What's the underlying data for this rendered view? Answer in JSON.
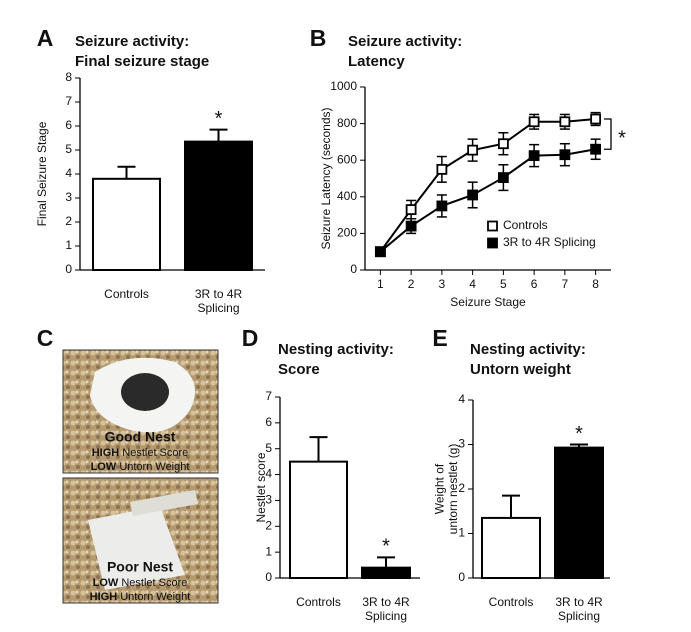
{
  "chart_data": [
    {
      "type": "bar",
      "panel_label": "A",
      "title": "Seizure activity:",
      "subtitle": "Final seizure stage",
      "ylabel": "Final Seizure Stage",
      "categories": [
        "Controls",
        "3R to 4R\nSplicing"
      ],
      "values": [
        3.8,
        5.35
      ],
      "errors": [
        0.5,
        0.5
      ],
      "colors": [
        "#ffffff",
        "#000000"
      ],
      "ylim": [
        0,
        8
      ],
      "yticks": [
        0,
        1,
        2,
        3,
        4,
        5,
        6,
        7,
        8
      ],
      "significance_label": "*"
    },
    {
      "type": "line",
      "panel_label": "B",
      "title": "Seizure activity:",
      "subtitle": "Latency",
      "xlabel": "Seizure Stage",
      "ylabel": "Seizure Latency (seconds)",
      "x": [
        1,
        2,
        3,
        4,
        5,
        6,
        7,
        8
      ],
      "xlim": [
        0.5,
        8.5
      ],
      "xticks": [
        1,
        2,
        3,
        4,
        5,
        6,
        7,
        8
      ],
      "ylim": [
        0,
        1000
      ],
      "yticks": [
        0,
        200,
        400,
        600,
        800,
        1000
      ],
      "series": [
        {
          "name": "Controls",
          "color": "#ffffff",
          "values": [
            100,
            330,
            550,
            655,
            690,
            810,
            810,
            825
          ],
          "errors": [
            20,
            50,
            70,
            60,
            60,
            40,
            40,
            35
          ]
        },
        {
          "name": "3R to 4R Splicing",
          "color": "#000000",
          "values": [
            100,
            240,
            350,
            410,
            505,
            625,
            630,
            660
          ],
          "errors": [
            20,
            40,
            60,
            70,
            70,
            60,
            60,
            55
          ]
        }
      ],
      "significance_label": "*"
    },
    {
      "type": "bar",
      "panel_label": "D",
      "title": "Nesting activity:",
      "subtitle": "Score",
      "ylabel": "Nestlet score",
      "categories": [
        "Controls",
        "3R to 4R\nSplicing"
      ],
      "values": [
        4.5,
        0.4
      ],
      "errors": [
        0.95,
        0.4
      ],
      "colors": [
        "#ffffff",
        "#000000"
      ],
      "ylim": [
        0,
        7
      ],
      "yticks": [
        0,
        1,
        2,
        3,
        4,
        5,
        6,
        7
      ],
      "significance_label": "*"
    },
    {
      "type": "bar",
      "panel_label": "E",
      "title": "Nesting activity:",
      "subtitle": "Untorn weight",
      "ylabel": "Weight of\nuntorn nestlet (g)",
      "categories": [
        "Controls",
        "3R to 4R\nSplicing"
      ],
      "values": [
        1.35,
        2.93
      ],
      "errors": [
        0.5,
        0.07
      ],
      "colors": [
        "#ffffff",
        "#000000"
      ],
      "ylim": [
        0,
        4
      ],
      "yticks": [
        0,
        1,
        2,
        3,
        4
      ],
      "significance_label": "*"
    }
  ],
  "photo_panel": {
    "panel_label": "C",
    "photos": [
      {
        "caption": "Good Nest",
        "lines": [
          {
            "strong": "HIGH",
            "text": "Nestlet Score"
          },
          {
            "strong": "LOW",
            "text": "Untorn Weight"
          }
        ]
      },
      {
        "caption": "Poor Nest",
        "lines": [
          {
            "strong": "LOW",
            "text": "Nestlet Score"
          },
          {
            "strong": "HIGH",
            "text": "Untorn Weight"
          }
        ]
      }
    ]
  }
}
